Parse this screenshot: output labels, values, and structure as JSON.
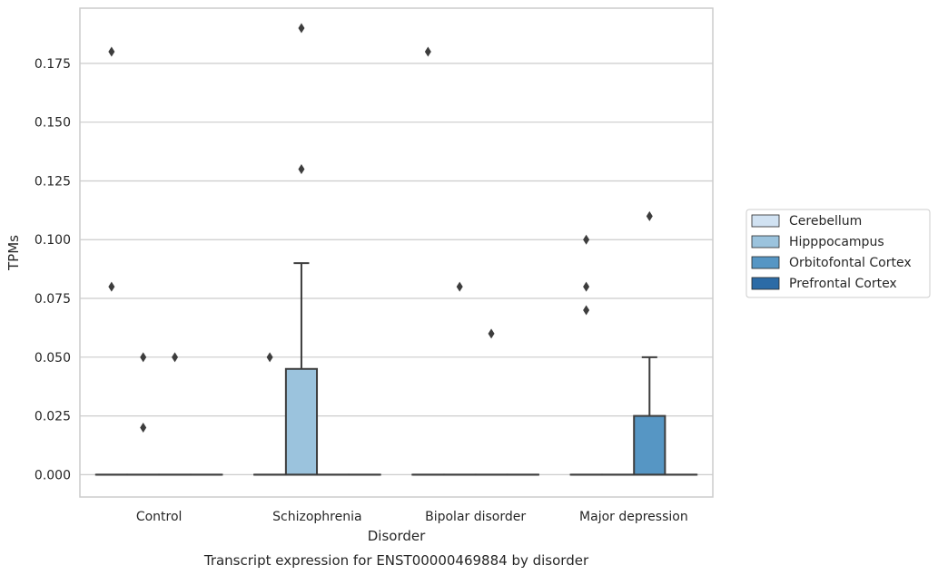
{
  "chart_data": {
    "type": "box",
    "xlabel": "Disorder",
    "ylabel": "TPMs",
    "caption": "Transcript expression for ENST00000469884 by disorder",
    "categories": [
      "Control",
      "Schizophrenia",
      "Bipolar disorder",
      "Major depression"
    ],
    "ylim": [
      -0.0095,
      0.1985
    ],
    "yticks": [
      "0.000",
      "0.025",
      "0.050",
      "0.075",
      "0.100",
      "0.125",
      "0.150",
      "0.175"
    ],
    "ytick_values": [
      0,
      0.025,
      0.05,
      0.075,
      0.1,
      0.125,
      0.15,
      0.175
    ],
    "grid": true,
    "legend_position": "right",
    "series": [
      {
        "name": "Cerebellum",
        "color": "#d1e2f2",
        "boxes": [
          {
            "category": "Control",
            "q1": 0,
            "median": 0,
            "q3": 0,
            "whisker_low": 0,
            "whisker_high": 0,
            "fliers": [
              0.18,
              0.08
            ]
          },
          {
            "category": "Schizophrenia",
            "q1": 0,
            "median": 0,
            "q3": 0,
            "whisker_low": 0,
            "whisker_high": 0,
            "fliers": [
              0.05
            ]
          },
          {
            "category": "Bipolar disorder",
            "q1": 0,
            "median": 0,
            "q3": 0,
            "whisker_low": 0,
            "whisker_high": 0,
            "fliers": [
              0.18
            ]
          },
          {
            "category": "Major depression",
            "q1": 0,
            "median": 0,
            "q3": 0,
            "whisker_low": 0,
            "whisker_high": 0,
            "fliers": [
              0.1,
              0.08,
              0.07
            ]
          }
        ]
      },
      {
        "name": "Hipppocampus",
        "color": "#9bc3dd",
        "boxes": [
          {
            "category": "Control",
            "q1": 0,
            "median": 0,
            "q3": 0,
            "whisker_low": 0,
            "whisker_high": 0,
            "fliers": [
              0.05,
              0.02
            ]
          },
          {
            "category": "Schizophrenia",
            "q1": 0,
            "median": 0,
            "q3": 0.045,
            "whisker_low": 0,
            "whisker_high": 0.09,
            "fliers": [
              0.19,
              0.13
            ]
          },
          {
            "category": "Bipolar disorder",
            "q1": 0,
            "median": 0,
            "q3": 0,
            "whisker_low": 0,
            "whisker_high": 0,
            "fliers": [
              0.08
            ]
          },
          {
            "category": "Major depression",
            "q1": 0,
            "median": 0,
            "q3": 0,
            "whisker_low": 0,
            "whisker_high": 0,
            "fliers": []
          }
        ]
      },
      {
        "name": "Orbitofontal Cortex",
        "color": "#5696c4",
        "boxes": [
          {
            "category": "Control",
            "q1": 0,
            "median": 0,
            "q3": 0,
            "whisker_low": 0,
            "whisker_high": 0,
            "fliers": [
              0.05
            ]
          },
          {
            "category": "Schizophrenia",
            "q1": 0,
            "median": 0,
            "q3": 0,
            "whisker_low": 0,
            "whisker_high": 0,
            "fliers": []
          },
          {
            "category": "Bipolar disorder",
            "q1": 0,
            "median": 0,
            "q3": 0,
            "whisker_low": 0,
            "whisker_high": 0,
            "fliers": [
              0.06
            ]
          },
          {
            "category": "Major depression",
            "q1": 0,
            "median": 0,
            "q3": 0.025,
            "whisker_low": 0,
            "whisker_high": 0.05,
            "fliers": [
              0.11
            ]
          }
        ]
      },
      {
        "name": "Prefrontal Cortex",
        "color": "#2c6ba6",
        "boxes": [
          {
            "category": "Control",
            "q1": 0,
            "median": 0,
            "q3": 0,
            "whisker_low": 0,
            "whisker_high": 0,
            "fliers": []
          },
          {
            "category": "Schizophrenia",
            "q1": 0,
            "median": 0,
            "q3": 0,
            "whisker_low": 0,
            "whisker_high": 0,
            "fliers": []
          },
          {
            "category": "Bipolar disorder",
            "q1": 0,
            "median": 0,
            "q3": 0,
            "whisker_low": 0,
            "whisker_high": 0,
            "fliers": []
          },
          {
            "category": "Major depression",
            "q1": 0,
            "median": 0,
            "q3": 0,
            "whisker_low": 0,
            "whisker_high": 0,
            "fliers": []
          }
        ]
      }
    ]
  }
}
